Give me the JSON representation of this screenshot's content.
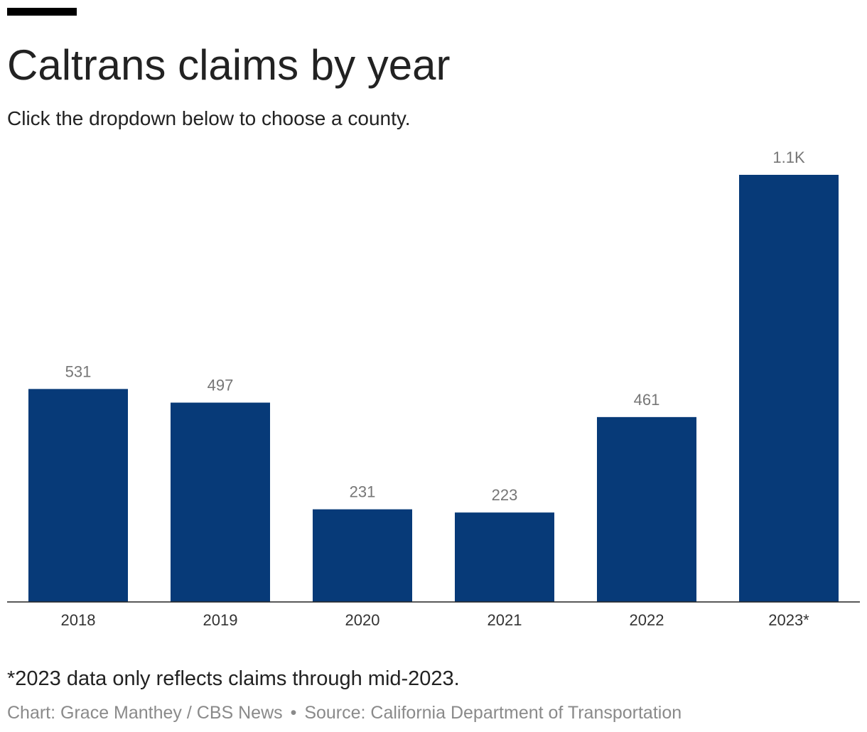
{
  "header": {
    "title": "Caltrans claims by year",
    "subtitle": "Click the dropdown below to choose a county."
  },
  "chart_data": {
    "type": "bar",
    "categories": [
      "2018",
      "2019",
      "2020",
      "2021",
      "2022",
      "2023*"
    ],
    "values": [
      531,
      497,
      231,
      223,
      461,
      1065
    ],
    "data_labels": [
      "531",
      "497",
      "231",
      "223",
      "461",
      "1.1K"
    ],
    "title": "Caltrans claims by year",
    "xlabel": "",
    "ylabel": "",
    "ylim": [
      0,
      1065
    ],
    "grid": false,
    "legend": "none",
    "bar_color": "#073a78",
    "label_color": "#767676",
    "axis_color": "#222222"
  },
  "footer": {
    "note": "*2023 data only reflects claims through mid-2023.",
    "chart_credit": "Chart: Grace Manthey / CBS News",
    "separator": "•",
    "source": "Source: California Department of Transportation"
  }
}
